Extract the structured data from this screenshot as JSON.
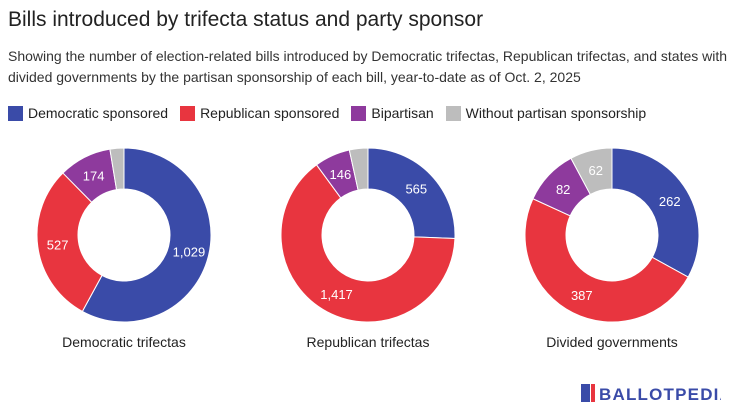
{
  "title": "Bills introduced by trifecta status and party sponsor",
  "subtitle": "Showing the number of election-related bills introduced by Democratic trifectas, Republican trifectas, and states with divided governments by the partisan sponsorship of each bill, year-to-date as of Oct. 2, 2025",
  "logo": {
    "text": "BALLOTPEDIA",
    "icon": "ballotpedia-logo"
  },
  "chart_data": {
    "type": "pie",
    "variant": "donut",
    "legend_placement": "top",
    "series": [
      {
        "name": "Democratic sponsored",
        "color": "#3a4ba8"
      },
      {
        "name": "Republican sponsored",
        "color": "#e8353f"
      },
      {
        "name": "Bipartisan",
        "color": "#8e3a9d"
      },
      {
        "name": "Without partisan sponsorship",
        "color": "#bdbdbd"
      }
    ],
    "charts": [
      {
        "name": "Democratic trifectas",
        "values": [
          1029,
          527,
          174,
          46
        ],
        "labels": [
          "1,029",
          "527",
          "174",
          ""
        ]
      },
      {
        "name": "Republican trifectas",
        "values": [
          565,
          1417,
          146,
          76
        ],
        "labels": [
          "565",
          "1,417",
          "146",
          ""
        ]
      },
      {
        "name": "Divided governments",
        "values": [
          262,
          387,
          82,
          62
        ],
        "labels": [
          "262",
          "387",
          "82",
          "62"
        ]
      }
    ]
  }
}
